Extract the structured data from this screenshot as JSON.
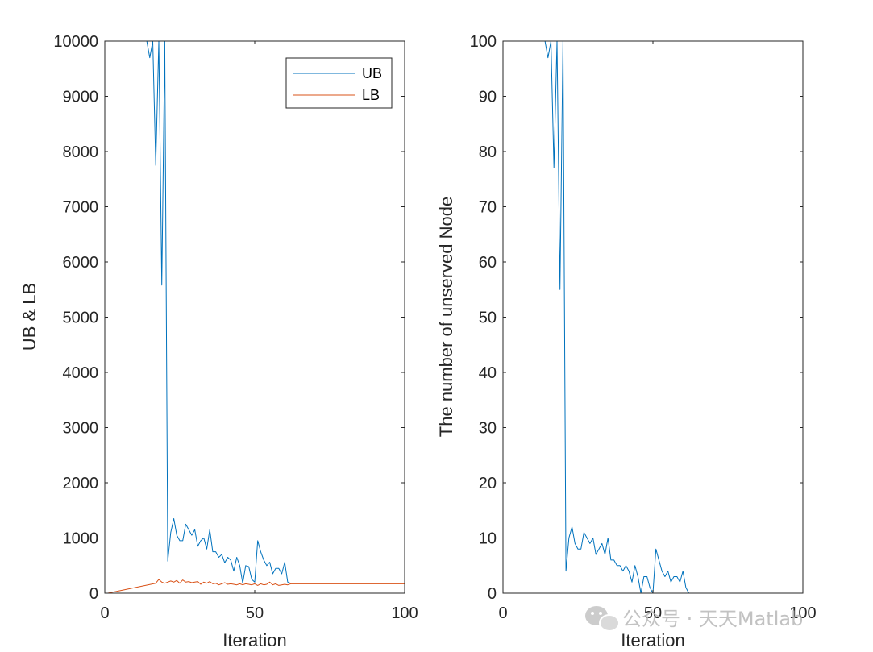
{
  "chart_data": [
    {
      "type": "line",
      "xlabel": "Iteration",
      "ylabel": "UB & LB",
      "xlim": [
        0,
        100
      ],
      "ylim": [
        0,
        10000
      ],
      "xticks": [
        "0",
        "50",
        "100"
      ],
      "yticks": [
        "0",
        "1000",
        "2000",
        "3000",
        "4000",
        "5000",
        "6000",
        "7000",
        "8000",
        "9000",
        "10000"
      ],
      "grid": false,
      "legend": {
        "position": "top-right",
        "entries": [
          "UB",
          "LB"
        ]
      },
      "series": [
        {
          "name": "UB",
          "color": "#0072BD",
          "x": [
            1,
            2,
            3,
            4,
            5,
            6,
            7,
            8,
            9,
            10,
            11,
            12,
            13,
            14,
            15,
            16,
            17,
            18,
            19,
            20,
            21,
            22,
            23,
            24,
            25,
            26,
            27,
            28,
            29,
            30,
            31,
            32,
            33,
            34,
            35,
            36,
            37,
            38,
            39,
            40,
            41,
            42,
            43,
            44,
            45,
            46,
            47,
            48,
            49,
            50,
            51,
            52,
            53,
            54,
            55,
            56,
            57,
            58,
            59,
            60,
            61,
            62,
            63,
            64,
            65,
            66,
            67,
            68,
            69,
            70,
            71,
            72,
            73,
            74,
            75,
            76,
            77,
            78,
            79,
            80,
            81,
            82,
            83,
            84,
            85,
            86,
            87,
            88,
            89,
            90,
            91,
            92,
            93,
            94,
            95,
            96,
            97,
            98,
            99,
            100
          ],
          "values": [
            10000,
            10000,
            10000,
            10000,
            10000,
            10000,
            10000,
            10000,
            10000,
            10000,
            10000,
            10000,
            10000,
            10000,
            9700,
            10000,
            7750,
            10000,
            5580,
            10000,
            580,
            1100,
            1350,
            1050,
            950,
            950,
            1250,
            1150,
            1050,
            1150,
            850,
            950,
            1000,
            800,
            1150,
            750,
            750,
            650,
            700,
            550,
            650,
            600,
            400,
            650,
            500,
            180,
            500,
            480,
            250,
            200,
            950,
            750,
            600,
            500,
            560,
            350,
            450,
            450,
            350,
            560,
            200,
            180,
            180,
            180,
            180,
            180,
            180,
            180,
            180,
            180,
            180,
            180,
            180,
            180,
            180,
            180,
            180,
            180,
            180,
            180,
            180,
            180,
            180,
            180,
            180,
            180,
            180,
            180,
            180,
            180,
            180,
            180,
            180,
            180,
            180,
            180,
            180,
            180,
            180,
            180
          ]
        },
        {
          "name": "LB",
          "color": "#D95319",
          "x": [
            1,
            17,
            18,
            19,
            20,
            21,
            22,
            23,
            24,
            25,
            26,
            27,
            28,
            29,
            30,
            31,
            32,
            33,
            34,
            35,
            36,
            37,
            38,
            39,
            40,
            41,
            42,
            43,
            44,
            45,
            46,
            47,
            48,
            49,
            50,
            51,
            52,
            53,
            54,
            55,
            56,
            57,
            58,
            59,
            60,
            61,
            62,
            100
          ],
          "values": [
            0,
            180,
            250,
            200,
            180,
            200,
            220,
            200,
            230,
            180,
            240,
            200,
            210,
            190,
            200,
            210,
            160,
            200,
            180,
            210,
            170,
            180,
            150,
            170,
            190,
            160,
            170,
            160,
            150,
            170,
            150,
            170,
            160,
            150,
            170,
            140,
            170,
            150,
            160,
            200,
            150,
            170,
            140,
            150,
            160,
            150,
            170,
            170
          ]
        }
      ]
    },
    {
      "type": "line",
      "xlabel": "Iteration",
      "ylabel": "The number of unserved Node",
      "xlim": [
        0,
        100
      ],
      "ylim": [
        0,
        100
      ],
      "xticks": [
        "0",
        "50",
        "100"
      ],
      "yticks": [
        "0",
        "10",
        "20",
        "30",
        "40",
        "50",
        "60",
        "70",
        "80",
        "90",
        "100"
      ],
      "grid": false,
      "series": [
        {
          "color": "#0072BD",
          "x": [
            1,
            2,
            3,
            4,
            5,
            6,
            7,
            8,
            9,
            10,
            11,
            12,
            13,
            14,
            15,
            16,
            17,
            18,
            19,
            20,
            21,
            22,
            23,
            24,
            25,
            26,
            27,
            28,
            29,
            30,
            31,
            32,
            33,
            34,
            35,
            36,
            37,
            38,
            39,
            40,
            41,
            42,
            43,
            44,
            45,
            46,
            47,
            48,
            49,
            50,
            51,
            52,
            53,
            54,
            55,
            56,
            57,
            58,
            59,
            60,
            61,
            62,
            63,
            64,
            65,
            66,
            67,
            68,
            69,
            70,
            71,
            72,
            73,
            74,
            75,
            76,
            77,
            78,
            79,
            80,
            81,
            82,
            83,
            84,
            85,
            86,
            87,
            88,
            89,
            90,
            91,
            92,
            93,
            94,
            95,
            96,
            97,
            98,
            99,
            100
          ],
          "values": [
            100,
            100,
            100,
            100,
            100,
            100,
            100,
            100,
            100,
            100,
            100,
            100,
            100,
            100,
            97,
            100,
            77,
            100,
            55,
            100,
            4,
            10,
            12,
            9,
            8,
            8,
            11,
            10,
            9,
            10,
            7,
            8,
            9,
            7,
            10,
            6,
            6,
            5,
            5,
            4,
            5,
            4,
            2,
            5,
            3,
            0,
            3,
            3,
            1,
            0,
            8,
            6,
            4,
            3,
            4,
            2,
            3,
            3,
            2,
            4,
            1,
            0,
            0,
            0,
            0,
            0,
            0,
            0,
            0,
            0,
            0,
            0,
            0,
            0,
            0,
            0,
            0,
            0,
            0,
            0,
            0,
            0,
            0,
            0,
            0,
            0,
            0,
            0,
            0,
            0,
            0,
            0,
            0,
            0,
            0,
            0,
            0,
            0,
            0,
            0
          ]
        }
      ]
    }
  ],
  "watermark": {
    "text": "公众号 · 天天Matlab",
    "icon": "wechat-icon"
  }
}
